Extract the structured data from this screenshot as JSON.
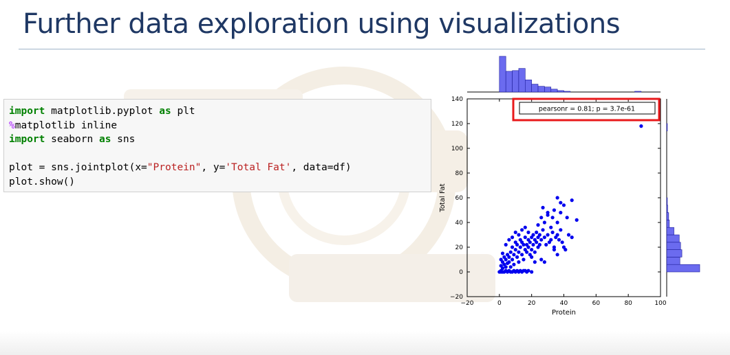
{
  "slide": {
    "title": "Further data exploration using visualizations"
  },
  "code_cell": {
    "lines": [
      [
        {
          "t": "import",
          "c": "kw"
        },
        {
          "t": " matplotlib.pyplot ",
          "c": ""
        },
        {
          "t": "as",
          "c": "kw"
        },
        {
          "t": " plt",
          "c": ""
        }
      ],
      [
        {
          "t": "%",
          "c": "magic"
        },
        {
          "t": "matplotlib inline",
          "c": ""
        }
      ],
      [
        {
          "t": "import",
          "c": "kw"
        },
        {
          "t": " seaborn ",
          "c": ""
        },
        {
          "t": "as",
          "c": "kw"
        },
        {
          "t": " sns",
          "c": ""
        }
      ],
      [
        {
          "t": "",
          "c": ""
        }
      ],
      [
        {
          "t": "plot = sns.jointplot(x=",
          "c": ""
        },
        {
          "t": "\"Protein\"",
          "c": "str"
        },
        {
          "t": ", y=",
          "c": ""
        },
        {
          "t": "'Total Fat'",
          "c": "str"
        },
        {
          "t": ", data=df)",
          "c": ""
        }
      ],
      [
        {
          "t": "plot.show()",
          "c": ""
        }
      ]
    ]
  },
  "chart_data": {
    "type": "scatter",
    "title": "",
    "xlabel": "Protein",
    "ylabel": "Total Fat",
    "xlim": [
      -20,
      100
    ],
    "ylim": [
      -20,
      140
    ],
    "xticks": [
      "−20",
      "0",
      "20",
      "40",
      "60",
      "80",
      "100"
    ],
    "xtick_values": [
      -20,
      0,
      20,
      40,
      60,
      80,
      100
    ],
    "yticks": [
      "−20",
      "0",
      "20",
      "40",
      "60",
      "80",
      "100",
      "120",
      "140"
    ],
    "ytick_values": [
      -20,
      0,
      20,
      40,
      60,
      80,
      100,
      120,
      140
    ],
    "annotation": "pearsonr = 0.81; p = 3.7e-61",
    "annotation_highlight_color": "#e8191b",
    "point_color": "#0000ee",
    "hist_color": "#6b6bef",
    "marginal_x_histogram": [
      {
        "x0": 0,
        "x1": 4,
        "count": 100
      },
      {
        "x0": 4,
        "x1": 8,
        "count": 58
      },
      {
        "x0": 8,
        "x1": 12,
        "count": 60
      },
      {
        "x0": 12,
        "x1": 16,
        "count": 66
      },
      {
        "x0": 16,
        "x1": 20,
        "count": 34
      },
      {
        "x0": 20,
        "x1": 24,
        "count": 22
      },
      {
        "x0": 24,
        "x1": 28,
        "count": 16
      },
      {
        "x0": 28,
        "x1": 32,
        "count": 14
      },
      {
        "x0": 32,
        "x1": 36,
        "count": 8
      },
      {
        "x0": 36,
        "x1": 40,
        "count": 4
      },
      {
        "x0": 40,
        "x1": 44,
        "count": 2
      },
      {
        "x0": 84,
        "x1": 88,
        "count": 2
      }
    ],
    "marginal_y_histogram": [
      {
        "y0": 0,
        "y1": 6,
        "count": 100
      },
      {
        "y0": 6,
        "y1": 12,
        "count": 40
      },
      {
        "y0": 12,
        "y1": 18,
        "count": 46
      },
      {
        "y0": 18,
        "y1": 24,
        "count": 42
      },
      {
        "y0": 24,
        "y1": 30,
        "count": 38
      },
      {
        "y0": 30,
        "y1": 36,
        "count": 22
      },
      {
        "y0": 36,
        "y1": 42,
        "count": 8
      },
      {
        "y0": 42,
        "y1": 48,
        "count": 6
      },
      {
        "y0": 48,
        "y1": 54,
        "count": 3
      },
      {
        "y0": 54,
        "y1": 60,
        "count": 2
      },
      {
        "y0": 114,
        "y1": 120,
        "count": 2
      }
    ],
    "points": [
      [
        0,
        0
      ],
      [
        1,
        0
      ],
      [
        2,
        0
      ],
      [
        3,
        0
      ],
      [
        1,
        1
      ],
      [
        4,
        1
      ],
      [
        5,
        0
      ],
      [
        6,
        1
      ],
      [
        7,
        0
      ],
      [
        8,
        0
      ],
      [
        9,
        1
      ],
      [
        10,
        0
      ],
      [
        11,
        1
      ],
      [
        12,
        0
      ],
      [
        13,
        1
      ],
      [
        14,
        0
      ],
      [
        15,
        1
      ],
      [
        16,
        1
      ],
      [
        17,
        0
      ],
      [
        18,
        1
      ],
      [
        20,
        0
      ],
      [
        2,
        3
      ],
      [
        1,
        5
      ],
      [
        3,
        6
      ],
      [
        2,
        8
      ],
      [
        4,
        4
      ],
      [
        5,
        7
      ],
      [
        1,
        10
      ],
      [
        3,
        12
      ],
      [
        2,
        15
      ],
      [
        4,
        10
      ],
      [
        5,
        14
      ],
      [
        6,
        8
      ],
      [
        6,
        12
      ],
      [
        7,
        4
      ],
      [
        7,
        16
      ],
      [
        8,
        10
      ],
      [
        8,
        20
      ],
      [
        9,
        6
      ],
      [
        9,
        14
      ],
      [
        10,
        18
      ],
      [
        10,
        24
      ],
      [
        11,
        12
      ],
      [
        11,
        22
      ],
      [
        12,
        8
      ],
      [
        12,
        16
      ],
      [
        13,
        20
      ],
      [
        13,
        26
      ],
      [
        14,
        14
      ],
      [
        14,
        24
      ],
      [
        15,
        10
      ],
      [
        15,
        22
      ],
      [
        16,
        18
      ],
      [
        16,
        28
      ],
      [
        17,
        16
      ],
      [
        17,
        22
      ],
      [
        18,
        20
      ],
      [
        18,
        26
      ],
      [
        19,
        14
      ],
      [
        19,
        24
      ],
      [
        20,
        18
      ],
      [
        20,
        28
      ],
      [
        21,
        22
      ],
      [
        21,
        30
      ],
      [
        22,
        16
      ],
      [
        22,
        26
      ],
      [
        23,
        24
      ],
      [
        23,
        32
      ],
      [
        24,
        20
      ],
      [
        24,
        28
      ],
      [
        25,
        30
      ],
      [
        25,
        22
      ],
      [
        26,
        26
      ],
      [
        27,
        34
      ],
      [
        28,
        28
      ],
      [
        29,
        22
      ],
      [
        30,
        30
      ],
      [
        31,
        24
      ],
      [
        32,
        26
      ],
      [
        33,
        32
      ],
      [
        34,
        20
      ],
      [
        35,
        28
      ],
      [
        36,
        30
      ],
      [
        37,
        26
      ],
      [
        38,
        34
      ],
      [
        39,
        24
      ],
      [
        40,
        20
      ],
      [
        41,
        18
      ],
      [
        43,
        30
      ],
      [
        45,
        28
      ],
      [
        24,
        38
      ],
      [
        26,
        44
      ],
      [
        28,
        40
      ],
      [
        30,
        48
      ],
      [
        32,
        36
      ],
      [
        33,
        44
      ],
      [
        34,
        50
      ],
      [
        36,
        40
      ],
      [
        38,
        48
      ],
      [
        38,
        56
      ],
      [
        36,
        60
      ],
      [
        40,
        54
      ],
      [
        42,
        44
      ],
      [
        45,
        58
      ],
      [
        48,
        42
      ],
      [
        27,
        52
      ],
      [
        30,
        46
      ],
      [
        26,
        10
      ],
      [
        28,
        8
      ],
      [
        36,
        14
      ],
      [
        34,
        18
      ],
      [
        20,
        12
      ],
      [
        22,
        8
      ],
      [
        6,
        26
      ],
      [
        8,
        28
      ],
      [
        4,
        22
      ],
      [
        10,
        32
      ],
      [
        12,
        30
      ],
      [
        14,
        34
      ],
      [
        16,
        36
      ],
      [
        18,
        32
      ],
      [
        88,
        118
      ]
    ]
  }
}
